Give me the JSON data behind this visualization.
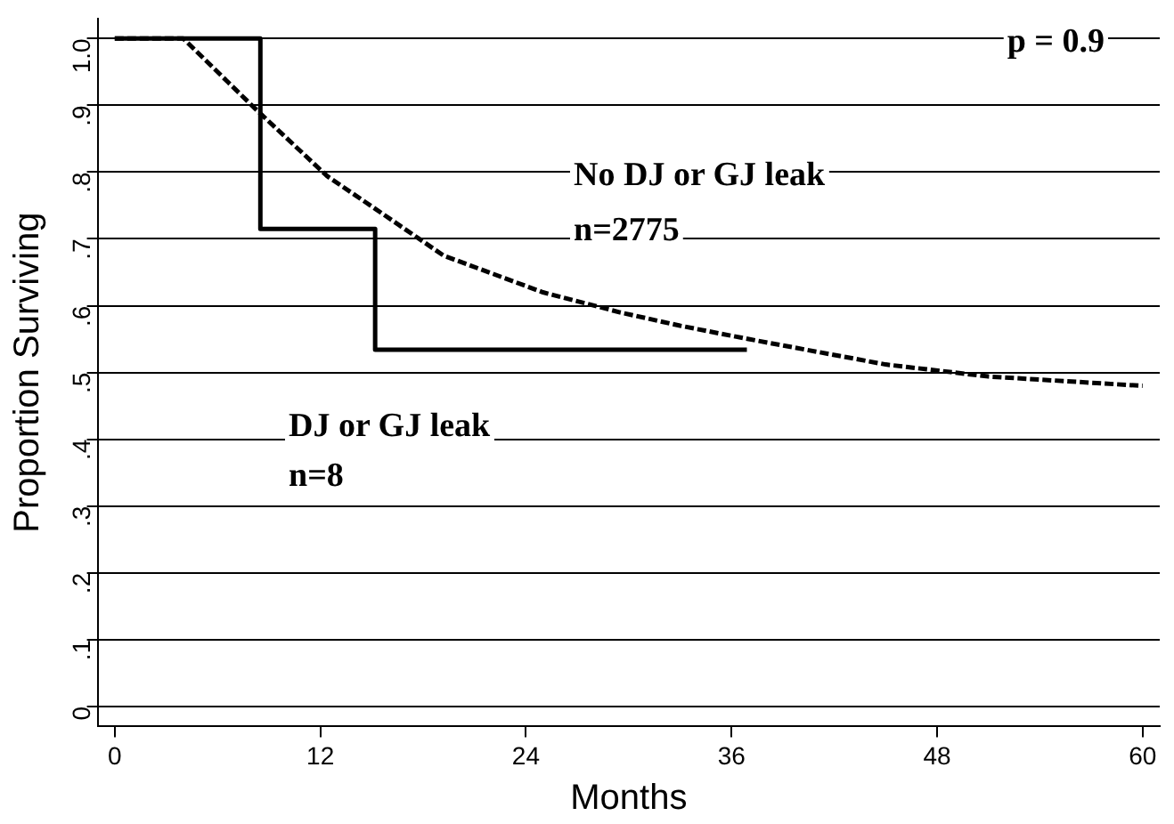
{
  "chart_data": {
    "type": "line",
    "xlabel": "Months",
    "ylabel": "Proportion Surviving",
    "xlim": [
      -1,
      61
    ],
    "xticks": [
      0,
      12,
      24,
      36,
      48,
      60
    ],
    "ylim": [
      -0.03,
      1.03
    ],
    "yticks": [
      {
        "value": 0,
        "label": "0"
      },
      {
        "value": 0.1,
        "label": ".1"
      },
      {
        "value": 0.2,
        "label": ".2"
      },
      {
        "value": 0.3,
        "label": ".3"
      },
      {
        "value": 0.4,
        "label": ".4"
      },
      {
        "value": 0.5,
        "label": ".5"
      },
      {
        "value": 0.6,
        "label": ".6"
      },
      {
        "value": 0.7,
        "label": ".7"
      },
      {
        "value": 0.8,
        "label": ".8"
      },
      {
        "value": 0.9,
        "label": ".9"
      },
      {
        "value": 1,
        "label": "1.0"
      }
    ],
    "grid": "y",
    "legend": false,
    "marker": "none",
    "series": [
      {
        "color": "#000000",
        "line_style": "dashed",
        "x": [
          0,
          4,
          8.2,
          12.4,
          14.7,
          19.2,
          25,
          29.5,
          33,
          37,
          45,
          51,
          60
        ],
        "values": [
          1,
          1,
          0.895,
          0.794,
          0.754,
          0.675,
          0.62,
          0.59,
          0.57,
          0.55,
          0.512,
          0.494,
          0.48
        ]
      },
      {
        "type": "step",
        "color": "#000000",
        "line_style": "solid",
        "x": [
          0,
          8.5,
          15.2,
          36.9
        ],
        "values": [
          1,
          0.715,
          0.534,
          0.534
        ]
      }
    ],
    "annotations": [
      "No DJ or GJ leak",
      "n=2775",
      "DJ or GJ leak",
      "n=8",
      "p = 0.9"
    ]
  }
}
